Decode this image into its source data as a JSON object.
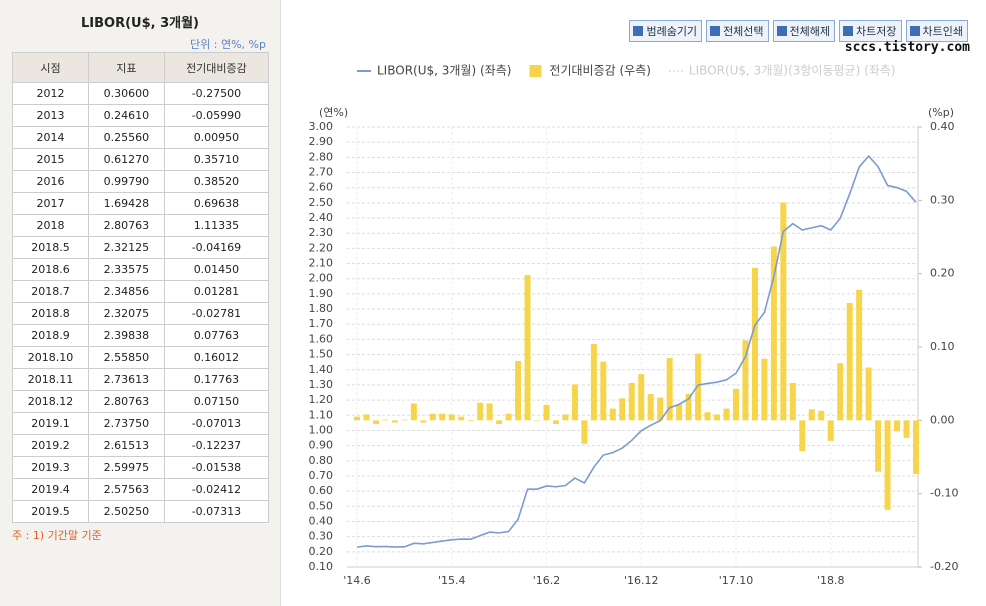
{
  "panel": {
    "title": "LIBOR(U$, 3개월)",
    "unit": "단위 : 연%, %p",
    "note": "주 : 1) 기간말 기준",
    "table": {
      "header": [
        "시점",
        "지표",
        "전기대비증감"
      ],
      "rows": [
        [
          "2012",
          "0.30600",
          "-0.27500"
        ],
        [
          "2013",
          "0.24610",
          "-0.05990"
        ],
        [
          "2014",
          "0.25560",
          "0.00950"
        ],
        [
          "2015",
          "0.61270",
          "0.35710"
        ],
        [
          "2016",
          "0.99790",
          "0.38520"
        ],
        [
          "2017",
          "1.69428",
          "0.69638"
        ],
        [
          "2018",
          "2.80763",
          "1.11335"
        ],
        [
          "2018.5",
          "2.32125",
          "-0.04169"
        ],
        [
          "2018.6",
          "2.33575",
          "0.01450"
        ],
        [
          "2018.7",
          "2.34856",
          "0.01281"
        ],
        [
          "2018.8",
          "2.32075",
          "-0.02781"
        ],
        [
          "2018.9",
          "2.39838",
          "0.07763"
        ],
        [
          "2018.10",
          "2.55850",
          "0.16012"
        ],
        [
          "2018.11",
          "2.73613",
          "0.17763"
        ],
        [
          "2018.12",
          "2.80763",
          "0.07150"
        ],
        [
          "2019.1",
          "2.73750",
          "-0.07013"
        ],
        [
          "2019.2",
          "2.61513",
          "-0.12237"
        ],
        [
          "2019.3",
          "2.59975",
          "-0.01538"
        ],
        [
          "2019.4",
          "2.57563",
          "-0.02412"
        ],
        [
          "2019.5",
          "2.50250",
          "-0.07313"
        ]
      ]
    }
  },
  "toolbar": {
    "buttons": [
      "범례숨기기",
      "전체선택",
      "전체해제",
      "차트저장",
      "차트인쇄"
    ],
    "watermark": "sccs.tistory.com"
  },
  "chart_data": {
    "type": "line-bar",
    "y_label": "(연%)",
    "y2_label": "(%p)",
    "categories": [
      "'14.6",
      null,
      null,
      null,
      null,
      null,
      null,
      null,
      null,
      null,
      "'15.4",
      null,
      null,
      null,
      null,
      null,
      null,
      null,
      null,
      null,
      "'16.2",
      null,
      null,
      null,
      null,
      null,
      null,
      null,
      null,
      null,
      "'16.12",
      null,
      null,
      null,
      null,
      null,
      null,
      null,
      null,
      null,
      "'17.10",
      null,
      null,
      null,
      null,
      null,
      null,
      null,
      null,
      null,
      "'18.8",
      null,
      null,
      null,
      null,
      null,
      null,
      null,
      null,
      null
    ],
    "series": [
      {
        "name": "LIBOR(U$, 3개월) (좌측)",
        "color": "#7b9bd1",
        "kind": "line",
        "axis": "y",
        "values": [
          0.231,
          0.239,
          0.234,
          0.235,
          0.232,
          0.233,
          0.256,
          0.253,
          0.262,
          0.271,
          0.279,
          0.284,
          0.283,
          0.307,
          0.33,
          0.325,
          0.334,
          0.415,
          0.613,
          0.613,
          0.634,
          0.629,
          0.637,
          0.686,
          0.654,
          0.758,
          0.838,
          0.854,
          0.884,
          0.935,
          0.998,
          1.034,
          1.065,
          1.15,
          1.172,
          1.208,
          1.299,
          1.31,
          1.318,
          1.334,
          1.377,
          1.486,
          1.694,
          1.778,
          2.015,
          2.312,
          2.363,
          2.321,
          2.336,
          2.349,
          2.321,
          2.398,
          2.559,
          2.736,
          2.808,
          2.738,
          2.615,
          2.6,
          2.576,
          2.503
        ]
      },
      {
        "name": "전기대비증감 (우측)",
        "color": "#f7d54a",
        "kind": "bar",
        "axis": "y2",
        "values": [
          0.005,
          0.008,
          -0.005,
          0.001,
          -0.003,
          0.001,
          0.023,
          -0.003,
          0.009,
          0.009,
          0.008,
          0.005,
          -0.001,
          0.024,
          0.023,
          -0.005,
          0.009,
          0.081,
          0.198,
          0.0,
          0.021,
          -0.005,
          0.008,
          0.049,
          -0.032,
          0.104,
          0.08,
          0.016,
          0.03,
          0.051,
          0.063,
          0.036,
          0.031,
          0.085,
          0.022,
          0.036,
          0.091,
          0.011,
          0.008,
          0.016,
          0.043,
          0.109,
          0.208,
          0.084,
          0.237,
          0.297,
          0.051,
          -0.042,
          0.015,
          0.013,
          -0.028,
          0.078,
          0.16,
          0.178,
          0.072,
          -0.07,
          -0.122,
          -0.015,
          -0.024,
          -0.073
        ]
      }
    ],
    "hidden_series": [
      {
        "name": "LIBOR(U$, 3개월)(3항이동평균) (좌측)",
        "color": "#cccccc"
      }
    ],
    "ylim": [
      0.1,
      3.0
    ],
    "yticks": [
      {
        "value": 0.1,
        "label": "0.10"
      },
      {
        "value": 0.2,
        "label": "0.20"
      },
      {
        "value": 0.3,
        "label": "0.30"
      },
      {
        "value": 0.4,
        "label": "0.40"
      },
      {
        "value": 0.5,
        "label": "0.50"
      },
      {
        "value": 0.6,
        "label": "0.60"
      },
      {
        "value": 0.7,
        "label": "0.70"
      },
      {
        "value": 0.8,
        "label": "0.80"
      },
      {
        "value": 0.9,
        "label": "0.90"
      },
      {
        "value": 1.0,
        "label": "1.00"
      },
      {
        "value": 1.1,
        "label": "1.10"
      },
      {
        "value": 1.2,
        "label": "1.20"
      },
      {
        "value": 1.3,
        "label": "1.30"
      },
      {
        "value": 1.4,
        "label": "1.40"
      },
      {
        "value": 1.5,
        "label": "1.50"
      },
      {
        "value": 1.6,
        "label": "1.60"
      },
      {
        "value": 1.7,
        "label": "1.70"
      },
      {
        "value": 1.8,
        "label": "1.80"
      },
      {
        "value": 1.9,
        "label": "1.90"
      },
      {
        "value": 2.0,
        "label": "2.00"
      },
      {
        "value": 2.1,
        "label": "2.10"
      },
      {
        "value": 2.2,
        "label": "2.20"
      },
      {
        "value": 2.3,
        "label": "2.30"
      },
      {
        "value": 2.4,
        "label": "2.40"
      },
      {
        "value": 2.5,
        "label": "2.50"
      },
      {
        "value": 2.6,
        "label": "2.60"
      },
      {
        "value": 2.7,
        "label": "2.70"
      },
      {
        "value": 2.8,
        "label": "2.80"
      },
      {
        "value": 2.9,
        "label": "2.90"
      },
      {
        "value": 3.0,
        "label": "3.00"
      }
    ],
    "y2lim": [
      -0.2,
      0.4
    ],
    "y2ticks": [
      {
        "value": -0.2,
        "label": "-0.20"
      },
      {
        "value": -0.1,
        "label": "-0.10"
      },
      {
        "value": 0,
        "label": "0.00"
      },
      {
        "value": 0.1,
        "label": "0.10"
      },
      {
        "value": 0.2,
        "label": "0.20"
      },
      {
        "value": 0.3,
        "label": "0.30"
      },
      {
        "value": 0.4,
        "label": "0.40"
      }
    ],
    "grid": true
  }
}
